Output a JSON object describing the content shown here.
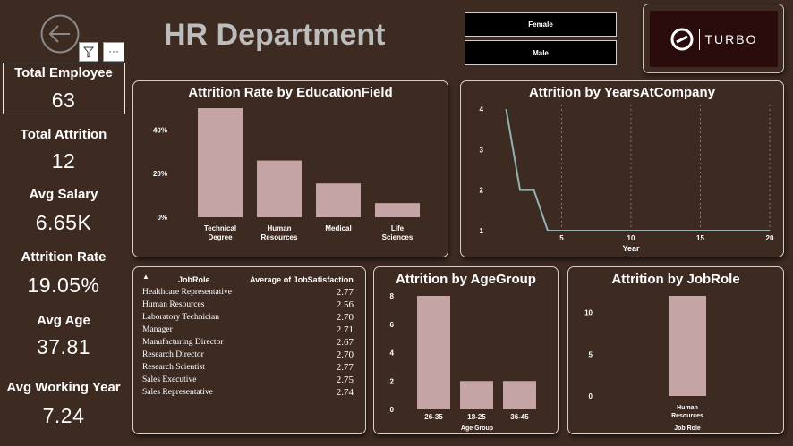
{
  "header": {
    "title": "HR Department",
    "filter_icon": "filter-icon",
    "more_label": "···",
    "back_icon": "back-arrow-icon"
  },
  "slicer": {
    "options": [
      "Female",
      "Male"
    ]
  },
  "logo": {
    "text": "TURBO"
  },
  "kpis": [
    {
      "label": "Total Employee",
      "value": "63"
    },
    {
      "label": "Total Attrition",
      "value": "12"
    },
    {
      "label": "Avg Salary",
      "value": "6.65K"
    },
    {
      "label": "Attrition Rate",
      "value": "19.05%"
    },
    {
      "label": "Avg Age",
      "value": "37.81"
    },
    {
      "label": "Avg Working Year",
      "value": "7.24"
    }
  ],
  "table": {
    "headers": [
      "JobRole",
      "Average of JobSatisfaction"
    ],
    "sort_icon": "sort-up-icon",
    "rows": [
      {
        "role": "Healthcare Representative",
        "value": "2.77"
      },
      {
        "role": "Human Resources",
        "value": "2.56"
      },
      {
        "role": "Laboratory Technician",
        "value": "2.70"
      },
      {
        "role": "Manager",
        "value": "2.71"
      },
      {
        "role": "Manufacturing Director",
        "value": "2.67"
      },
      {
        "role": "Research Director",
        "value": "2.70"
      },
      {
        "role": "Research Scientist",
        "value": "2.77"
      },
      {
        "role": "Sales Executive",
        "value": "2.75"
      },
      {
        "role": "Sales Representative",
        "value": "2.74"
      }
    ]
  },
  "colors": {
    "background": "#3d2a21",
    "bar": "#c4a4a4",
    "line": "#8fb3b3",
    "logo_bg": "#2a0c0c"
  },
  "chart_data": [
    {
      "type": "bar",
      "title": "Attrition Rate by EducationField",
      "categories": [
        "Technical Degree",
        "Human Resources",
        "Medical",
        "Life Sciences"
      ],
      "values": [
        0.5,
        0.26,
        0.155,
        0.065
      ],
      "yticks": [
        0,
        0.2,
        0.4
      ],
      "ytick_labels": [
        "0%",
        "20%",
        "40%"
      ],
      "ylim": [
        0,
        0.5
      ],
      "xlabel": "",
      "ylabel": ""
    },
    {
      "type": "line",
      "title": "Attrition by YearsAtCompany",
      "x": [
        1,
        2,
        3,
        4,
        20
      ],
      "y": [
        4,
        2,
        2,
        1,
        1
      ],
      "xlabel": "Year",
      "xlim": [
        0,
        20
      ],
      "ylim": [
        1,
        4
      ],
      "xticks": [
        5,
        10,
        15,
        20
      ],
      "yticks": [
        1,
        2,
        3,
        4
      ]
    },
    {
      "type": "bar",
      "title": "Attrition by AgeGroup",
      "categories": [
        "26-35",
        "18-25",
        "36-45"
      ],
      "values": [
        8,
        2,
        2
      ],
      "yticks": [
        0,
        2,
        4,
        6,
        8
      ],
      "ylim": [
        0,
        8
      ],
      "xlabel": "Age Group",
      "ylabel": ""
    },
    {
      "type": "bar",
      "title": "Attrition by JobRole",
      "categories": [
        "Human Resources"
      ],
      "values": [
        12
      ],
      "yticks": [
        0,
        5,
        10
      ],
      "ylim": [
        0,
        12
      ],
      "xlabel": "Job Role",
      "ylabel": ""
    }
  ]
}
